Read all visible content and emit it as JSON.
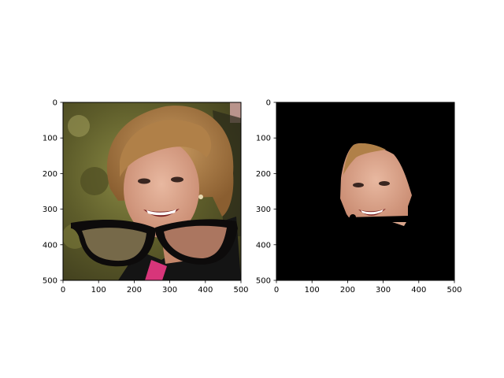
{
  "chart_data": [
    {
      "type": "image",
      "subplot": "left",
      "content": "portrait photo of a smiling woman with short light-brown hair, with a black eyeglasses overlay drawn across the lower face",
      "xlim": [
        0,
        500
      ],
      "ylim": [
        500,
        0
      ],
      "x_ticks": [
        "0",
        "100",
        "200",
        "300",
        "400",
        "500"
      ],
      "y_ticks": [
        "0",
        "100",
        "200",
        "300",
        "400",
        "500"
      ]
    },
    {
      "type": "image",
      "subplot": "right",
      "content": "segmented face region of the same woman on a black background",
      "xlim": [
        0,
        500
      ],
      "ylim": [
        500,
        0
      ],
      "x_ticks": [
        "0",
        "100",
        "200",
        "300",
        "400",
        "500"
      ],
      "y_ticks": [
        "0",
        "100",
        "200",
        "300",
        "400",
        "500"
      ]
    }
  ],
  "colors": {
    "background": "#ffffff",
    "axis": "#000000",
    "mask_bg": "#000000",
    "skin": "#d9a58c",
    "hair": "#a87a48",
    "foliage": "#6b6a30",
    "jacket": "#141414",
    "shirt": "#d8357a",
    "glasses": "#0d0b0b"
  }
}
